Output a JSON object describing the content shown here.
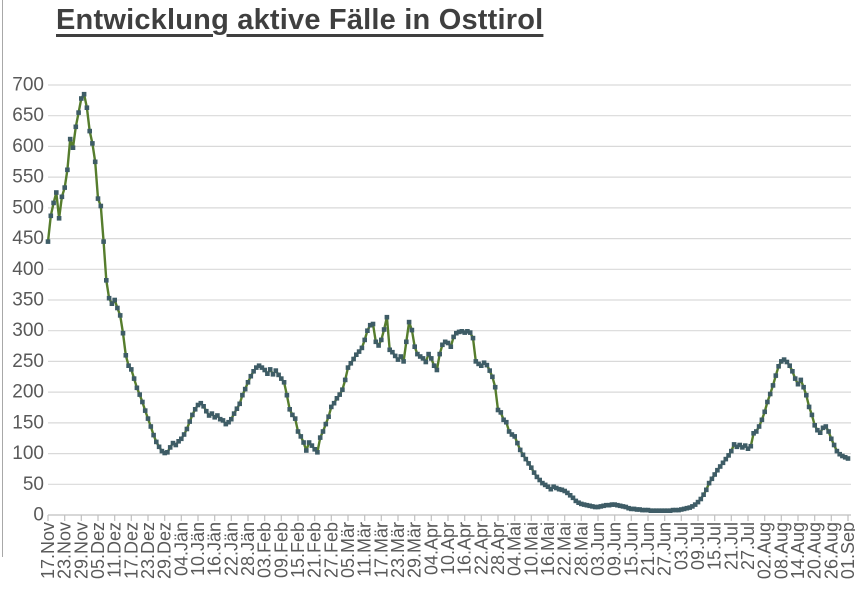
{
  "chart_data": {
    "type": "line",
    "title": "Entwicklung aktive Fälle in Osttirol",
    "xlabel": "",
    "ylabel": "",
    "ylim": [
      0,
      700
    ],
    "y_ticks": [
      0,
      50,
      100,
      150,
      200,
      250,
      300,
      350,
      400,
      450,
      500,
      550,
      600,
      650,
      700
    ],
    "grid": "horizontal",
    "legend": "none",
    "marker": "square",
    "x_tick_interval_days": 6,
    "x_tick_labels": [
      "17.Nov",
      "23.Nov",
      "29.Nov",
      "05.Dez",
      "11.Dez",
      "17.Dez",
      "23.Dez",
      "29.Dez",
      "04.Jän",
      "10.Jän",
      "16.Jän",
      "22.Jän",
      "28.Jän",
      "03.Feb",
      "09.Feb",
      "15.Feb",
      "21.Feb",
      "27.Feb",
      "05.Mär",
      "11.Mär",
      "17.Mär",
      "23.Mär",
      "29.Mär",
      "04.Apr",
      "10.Apr",
      "16.Apr",
      "22.Apr",
      "28.Apr",
      "04.Mai",
      "10.Mai",
      "16.Mai",
      "22.Mai",
      "28.Mai",
      "03.Jun",
      "09.Jun",
      "15.Jun",
      "21.Jun",
      "27.Jun",
      "03.Jul",
      "09.Jul",
      "15.Jul",
      "21.Jul",
      "27.Jul",
      "02.Aug",
      "08.Aug",
      "14.Aug",
      "20.Aug",
      "26.Aug",
      "01.Sep"
    ],
    "values": [
      445,
      487,
      508,
      525,
      483,
      518,
      533,
      562,
      612,
      598,
      632,
      655,
      678,
      685,
      663,
      625,
      605,
      575,
      515,
      503,
      445,
      382,
      353,
      344,
      350,
      337,
      325,
      296,
      260,
      243,
      237,
      222,
      207,
      196,
      184,
      170,
      157,
      144,
      130,
      119,
      111,
      104,
      101,
      102,
      110,
      117,
      114,
      120,
      124,
      131,
      140,
      152,
      163,
      172,
      179,
      182,
      177,
      169,
      162,
      165,
      159,
      162,
      156,
      154,
      148,
      151,
      156,
      165,
      173,
      181,
      195,
      205,
      216,
      226,
      234,
      240,
      243,
      240,
      236,
      230,
      237,
      229,
      235,
      228,
      222,
      216,
      195,
      172,
      163,
      157,
      136,
      128,
      118,
      105,
      118,
      113,
      107,
      102,
      126,
      136,
      148,
      160,
      176,
      182,
      190,
      196,
      204,
      220,
      240,
      247,
      254,
      261,
      266,
      272,
      285,
      300,
      309,
      311,
      282,
      276,
      285,
      302,
      322,
      269,
      265,
      259,
      253,
      258,
      250,
      282,
      314,
      301,
      274,
      262,
      258,
      255,
      249,
      262,
      255,
      243,
      236,
      262,
      277,
      282,
      280,
      274,
      290,
      296,
      298,
      299,
      297,
      299,
      297,
      288,
      250,
      246,
      243,
      248,
      244,
      235,
      225,
      208,
      171,
      167,
      155,
      151,
      136,
      131,
      128,
      117,
      106,
      98,
      91,
      84,
      77,
      69,
      62,
      57,
      52,
      49,
      46,
      42,
      46,
      44,
      42,
      41,
      39,
      36,
      32,
      28,
      23,
      20,
      18,
      17,
      16,
      15,
      14,
      13,
      13,
      14,
      15,
      16,
      16,
      17,
      17,
      16,
      15,
      14,
      13,
      11,
      10,
      10,
      9,
      9,
      8,
      8,
      8,
      7,
      7,
      7,
      7,
      7,
      7,
      7,
      7,
      8,
      8,
      8,
      9,
      10,
      11,
      12,
      14,
      17,
      21,
      26,
      33,
      41,
      52,
      59,
      66,
      73,
      79,
      85,
      91,
      97,
      104,
      115,
      111,
      114,
      110,
      113,
      108,
      112,
      133,
      136,
      144,
      155,
      168,
      184,
      197,
      211,
      227,
      242,
      250,
      253,
      249,
      243,
      234,
      222,
      213,
      220,
      208,
      195,
      176,
      163,
      146,
      138,
      134,
      142,
      144,
      136,
      124,
      114,
      104,
      99,
      96,
      94,
      92
    ],
    "style": {
      "line_color": "#567D2D",
      "marker_color": "#3E5C66",
      "grid_color": "#D9D9D9",
      "axis_color": "#BFBFBF",
      "tick_label_color": "#595959",
      "title_color": "#3F3F3F"
    }
  }
}
